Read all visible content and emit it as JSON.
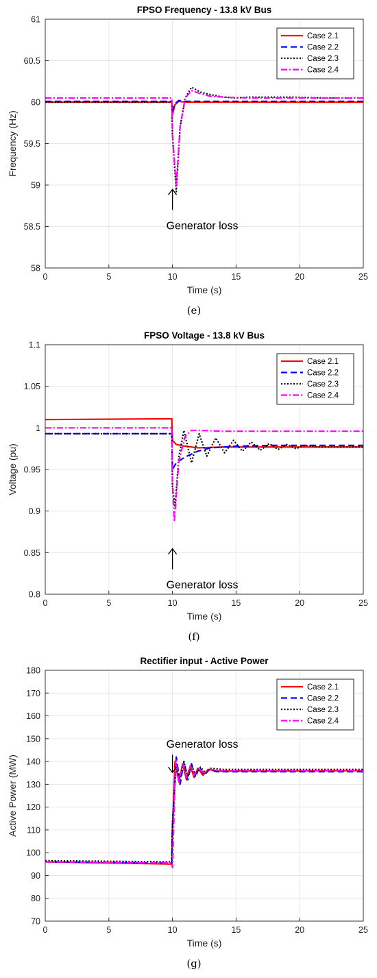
{
  "chart_data": [
    {
      "type": "line",
      "title": "FPSO Frequency - 13.8 kV Bus",
      "xlabel": "Time (s)",
      "ylabel": "Frequency (Hz)",
      "xlim": [
        0,
        25
      ],
      "ylim": [
        58,
        61
      ],
      "xticks": [
        "0",
        "5",
        "10",
        "15",
        "20",
        "25"
      ],
      "yticks": [
        "58",
        "58.5",
        "59",
        "59.5",
        "60",
        "60.5",
        "61"
      ],
      "grid": true,
      "legend_position": "top-right",
      "caption": "(e)",
      "annotation": {
        "text": "Generator loss",
        "x": 10,
        "y": 58.7,
        "arrow": "up"
      },
      "series": [
        {
          "name": "Case 2.1",
          "color": "#ff0000",
          "dash": "solid",
          "x": [
            0,
            9.95,
            10.0,
            10.2,
            10.5,
            11,
            12,
            25
          ],
          "y": [
            60.0,
            60.0,
            59.85,
            59.97,
            60.01,
            60.0,
            60.0,
            60.0
          ]
        },
        {
          "name": "Case 2.2",
          "color": "#0000ff",
          "dash": "dashed",
          "x": [
            0,
            9.95,
            10.0,
            10.2,
            10.5,
            11,
            12,
            25
          ],
          "y": [
            60.01,
            60.01,
            59.9,
            59.98,
            60.02,
            60.01,
            60.01,
            60.01
          ]
        },
        {
          "name": "Case 2.3",
          "color": "#000000",
          "dash": "dotted",
          "x": [
            0,
            9.95,
            10.0,
            10.3,
            10.6,
            11,
            11.5,
            12.2,
            13,
            14,
            15,
            16,
            17.5,
            19.5,
            22,
            25
          ],
          "y": [
            60.0,
            60.0,
            59.6,
            58.92,
            59.7,
            60.05,
            60.18,
            60.12,
            60.09,
            60.06,
            60.05,
            60.06,
            60.06,
            60.06,
            60.05,
            60.05
          ]
        },
        {
          "name": "Case 2.4",
          "color": "#ff00ff",
          "dash": "dashdot",
          "x": [
            0,
            9.95,
            10.0,
            10.3,
            10.6,
            11,
            11.5,
            12.2,
            13,
            14,
            16,
            20,
            25
          ],
          "y": [
            60.05,
            60.05,
            59.6,
            59.0,
            59.7,
            60.05,
            60.14,
            60.1,
            60.07,
            60.06,
            60.05,
            60.05,
            60.05
          ]
        }
      ]
    },
    {
      "type": "line",
      "title": "FPSO Voltage - 13.8 kV Bus",
      "xlabel": "Time (s)",
      "ylabel": "Voltage (pu)",
      "xlim": [
        0,
        25
      ],
      "ylim": [
        0.8,
        1.1
      ],
      "xticks": [
        "0",
        "5",
        "10",
        "15",
        "20",
        "25"
      ],
      "yticks": [
        "0.8",
        "0.85",
        "0.9",
        "0.95",
        "1",
        "1.05",
        "1.1"
      ],
      "grid": true,
      "legend_position": "top-right",
      "caption": "(f)",
      "annotation": {
        "text": "Generator loss",
        "x": 10,
        "y": 0.83,
        "arrow": "up"
      },
      "series": [
        {
          "name": "Case 2.1",
          "color": "#ff0000",
          "dash": "solid",
          "x": [
            0,
            9.95,
            10.0,
            10.3,
            11,
            12,
            14,
            17,
            25
          ],
          "y": [
            1.01,
            1.011,
            0.985,
            0.98,
            0.978,
            0.976,
            0.977,
            0.977,
            0.977
          ]
        },
        {
          "name": "Case 2.2",
          "color": "#0000ff",
          "dash": "dashed",
          "x": [
            0,
            9.95,
            10.0,
            10.3,
            11,
            12,
            13,
            15,
            18,
            25
          ],
          "y": [
            0.993,
            0.993,
            0.95,
            0.958,
            0.965,
            0.972,
            0.976,
            0.978,
            0.979,
            0.979
          ]
        },
        {
          "name": "Case 2.3",
          "color": "#000000",
          "dash": "dotted",
          "x": [
            0,
            9.95,
            10.0,
            10.2,
            10.5,
            10.9,
            11.5,
            12.1,
            12.7,
            13.4,
            14.1,
            14.8,
            15.5,
            16.2,
            16.9,
            17.6,
            18.3,
            19,
            19.7,
            20.4,
            21.5,
            25
          ],
          "y": [
            0.993,
            0.993,
            0.93,
            0.905,
            0.965,
            0.997,
            0.958,
            0.993,
            0.966,
            0.988,
            0.97,
            0.985,
            0.972,
            0.983,
            0.973,
            0.981,
            0.974,
            0.98,
            0.975,
            0.979,
            0.977,
            0.977
          ]
        },
        {
          "name": "Case 2.4",
          "color": "#ff00ff",
          "dash": "dashdot",
          "x": [
            0,
            9.95,
            10.0,
            10.15,
            10.5,
            11,
            11.5,
            12,
            14,
            25
          ],
          "y": [
            1.0,
            1.0,
            0.93,
            0.887,
            0.96,
            0.99,
            0.997,
            0.997,
            0.996,
            0.996
          ]
        }
      ]
    },
    {
      "type": "line",
      "title": "Rectifier input - Active Power",
      "xlabel": "Time (s)",
      "ylabel": "Active Power (MW)",
      "xlim": [
        0,
        25
      ],
      "ylim": [
        70,
        180
      ],
      "xticks": [
        "0",
        "5",
        "10",
        "15",
        "20",
        "25"
      ],
      "yticks": [
        "70",
        "80",
        "90",
        "100",
        "110",
        "120",
        "130",
        "140",
        "150",
        "160",
        "170",
        "180"
      ],
      "grid": true,
      "legend_position": "top-right",
      "caption": "(g)",
      "annotation": {
        "text": "Generator loss",
        "x": 10,
        "y": 146,
        "arrow": "down"
      },
      "series": [
        {
          "name": "Case 2.1",
          "color": "#ff0000",
          "dash": "solid",
          "x": [
            0,
            9.95,
            10.0,
            10.2,
            10.5,
            10.8,
            11.1,
            11.4,
            11.7,
            12,
            12.4,
            12.8,
            13.5,
            25
          ],
          "y": [
            96,
            95,
            110,
            140,
            131,
            139,
            132,
            138,
            133,
            137,
            134,
            136.5,
            135.8,
            136
          ]
        },
        {
          "name": "Case 2.2",
          "color": "#0000ff",
          "dash": "dashed",
          "x": [
            0,
            9.95,
            10.0,
            10.3,
            10.6,
            10.9,
            11.2,
            11.5,
            11.8,
            12.1,
            12.5,
            12.9,
            13.5,
            25
          ],
          "y": [
            96,
            95.5,
            112,
            142,
            130,
            140,
            132,
            139,
            133,
            137.5,
            134,
            136.5,
            135.5,
            135.5
          ]
        },
        {
          "name": "Case 2.3",
          "color": "#000000",
          "dash": "dotted",
          "x": [
            0,
            9.95,
            10.0,
            10.3,
            10.6,
            10.9,
            11.2,
            11.5,
            11.8,
            12.2,
            12.6,
            13,
            14,
            25
          ],
          "y": [
            96.5,
            96,
            113,
            139,
            132,
            140,
            133,
            138.5,
            134,
            137.5,
            135,
            137,
            136.5,
            136.5
          ]
        },
        {
          "name": "Case 2.4",
          "color": "#ff00ff",
          "dash": "dashdot",
          "x": [
            0,
            9.95,
            10.0,
            10.25,
            10.5,
            10.8,
            11.1,
            11.4,
            11.7,
            12,
            12.5,
            13,
            14,
            25
          ],
          "y": [
            96,
            95.5,
            93.5,
            141,
            131,
            139,
            133,
            138,
            134,
            137,
            135,
            136.5,
            136,
            136
          ]
        }
      ]
    }
  ]
}
